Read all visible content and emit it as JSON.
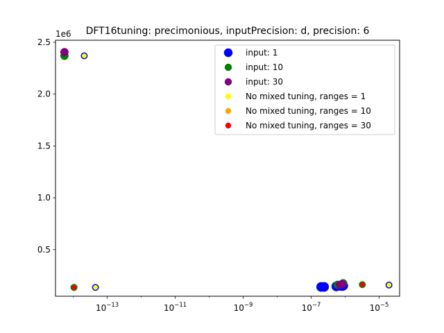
{
  "chart_data": {
    "type": "scatter",
    "title": "DFT16tuning: precimonious, inputPrecision: d, precision: 6",
    "xlabel": "",
    "ylabel": "",
    "x_scale": "log",
    "xlim": [
      3e-15,
      4e-05
    ],
    "ylim": [
      50000,
      2520000
    ],
    "y_offset_label": "1e6",
    "x_ticks": [
      {
        "value": 1e-13,
        "base": "10",
        "exp": "−13"
      },
      {
        "value": 1e-11,
        "base": "10",
        "exp": "−11"
      },
      {
        "value": 1e-09,
        "base": "10",
        "exp": "−9"
      },
      {
        "value": 1e-07,
        "base": "10",
        "exp": "−7"
      },
      {
        "value": 1e-05,
        "base": "10",
        "exp": "−5"
      }
    ],
    "y_ticks": [
      {
        "value": 500000,
        "label": "0.5"
      },
      {
        "value": 1000000,
        "label": "1.0"
      },
      {
        "value": 1500000,
        "label": "1.5"
      },
      {
        "value": 2000000,
        "label": "2.0"
      },
      {
        "value": 2500000,
        "label": "2.5"
      }
    ],
    "grid": false,
    "legend_position": "top-right",
    "series": [
      {
        "name": "input: 1",
        "color": "#0000ff",
        "edge": "#0000ff",
        "size": "large",
        "points": [
          [
            1.97e-07,
            140000
          ],
          [
            2.4e-07,
            140000
          ],
          [
            5.5e-07,
            145000
          ],
          [
            7.2e-07,
            150000
          ],
          [
            8.3e-07,
            148000
          ],
          [
            8.8e-07,
            152000
          ]
        ]
      },
      {
        "name": "input: 10",
        "color": "#008000",
        "edge": "#008000",
        "size": "medium",
        "points": [
          [
            5.5e-15,
            2370000
          ],
          [
            8.7e-07,
            175000
          ],
          [
            6e-07,
            160000
          ]
        ]
      },
      {
        "name": "input: 30",
        "color": "#800080",
        "edge": "#800080",
        "size": "medium",
        "points": [
          [
            5.5e-15,
            2405000
          ],
          [
            7e-07,
            160000
          ],
          [
            8.2e-07,
            165000
          ]
        ]
      },
      {
        "name": "No mixed tuning, ranges = 1",
        "color": "#ffff00",
        "edge": "#0000ff",
        "size": "small",
        "points": [
          [
            2.1e-14,
            2370000
          ],
          [
            4.5e-14,
            135000
          ],
          [
            1.95e-05,
            158000
          ]
        ]
      },
      {
        "name": "No mixed tuning, ranges = 10",
        "color": "#ffa500",
        "edge": "#008000",
        "size": "small",
        "points": [
          [
            1.05e-14,
            135000
          ]
        ]
      },
      {
        "name": "No mixed tuning, ranges = 30",
        "color": "#ff0000",
        "edge": "#008000",
        "size": "small",
        "points": [
          [
            1.05e-14,
            135000
          ],
          [
            3.2e-06,
            162000
          ]
        ]
      }
    ]
  }
}
